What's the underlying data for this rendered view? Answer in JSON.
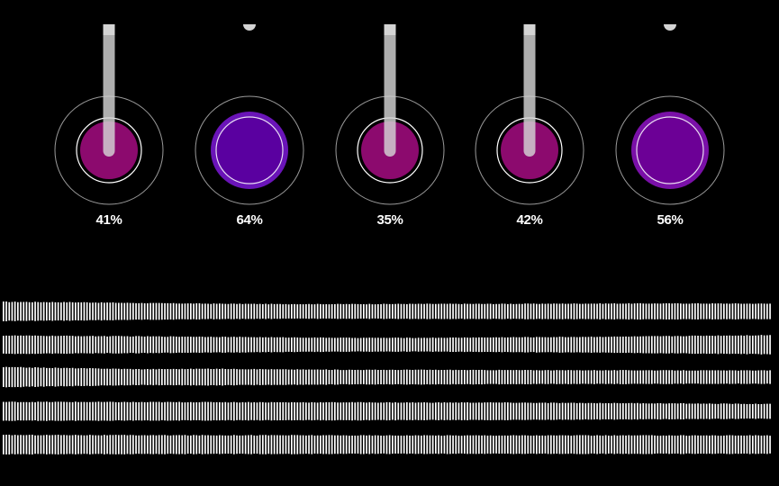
{
  "knobs": [
    {
      "name": "knob-1",
      "value_label": "41%",
      "value": 0.41,
      "style": "slider",
      "fill": "#8c0a6e",
      "ring": "#ffffff"
    },
    {
      "name": "knob-2",
      "value_label": "64%",
      "value": 0.64,
      "style": "button",
      "fill": "#5a00a0",
      "halo": "#6a14b8",
      "ring": "#ffffff"
    },
    {
      "name": "knob-3",
      "value_label": "35%",
      "value": 0.35,
      "style": "slider",
      "fill": "#8c0a6e",
      "ring": "#ffffff"
    },
    {
      "name": "knob-4",
      "value_label": "42%",
      "value": 0.42,
      "style": "slider",
      "fill": "#8c0a6e",
      "ring": "#ffffff"
    },
    {
      "name": "knob-5",
      "value_label": "56%",
      "value": 0.56,
      "style": "button",
      "fill": "#6c0096",
      "halo": "#7a10a8",
      "ring": "#ffffff"
    }
  ],
  "colors": {
    "background": "#000000",
    "outer_ring": "#9a9a9a",
    "slider_track": "#d4d4d4",
    "waveform": "#ffffff"
  },
  "waveforms": [
    {
      "name": "waveform-1",
      "profile": [
        0.92,
        0.88,
        0.8,
        0.74,
        0.7,
        0.7,
        0.72,
        0.72,
        0.74,
        0.76,
        0.76,
        0.74
      ]
    },
    {
      "name": "waveform-2",
      "profile": [
        0.88,
        0.84,
        0.8,
        0.76,
        0.7,
        0.66,
        0.66,
        0.7,
        0.74,
        0.78,
        0.86,
        0.92
      ]
    },
    {
      "name": "waveform-3",
      "profile": [
        0.96,
        0.86,
        0.76,
        0.8,
        0.74,
        0.7,
        0.7,
        0.68,
        0.66,
        0.66,
        0.64,
        0.64
      ]
    },
    {
      "name": "waveform-4",
      "profile": [
        0.9,
        0.9,
        0.88,
        0.88,
        0.86,
        0.86,
        0.84,
        0.84,
        0.8,
        0.78,
        0.74,
        0.7
      ]
    },
    {
      "name": "waveform-5",
      "profile": [
        0.92,
        0.92,
        0.9,
        0.9,
        0.9,
        0.88,
        0.88,
        0.88,
        0.88,
        0.88,
        0.88,
        0.88
      ]
    }
  ]
}
